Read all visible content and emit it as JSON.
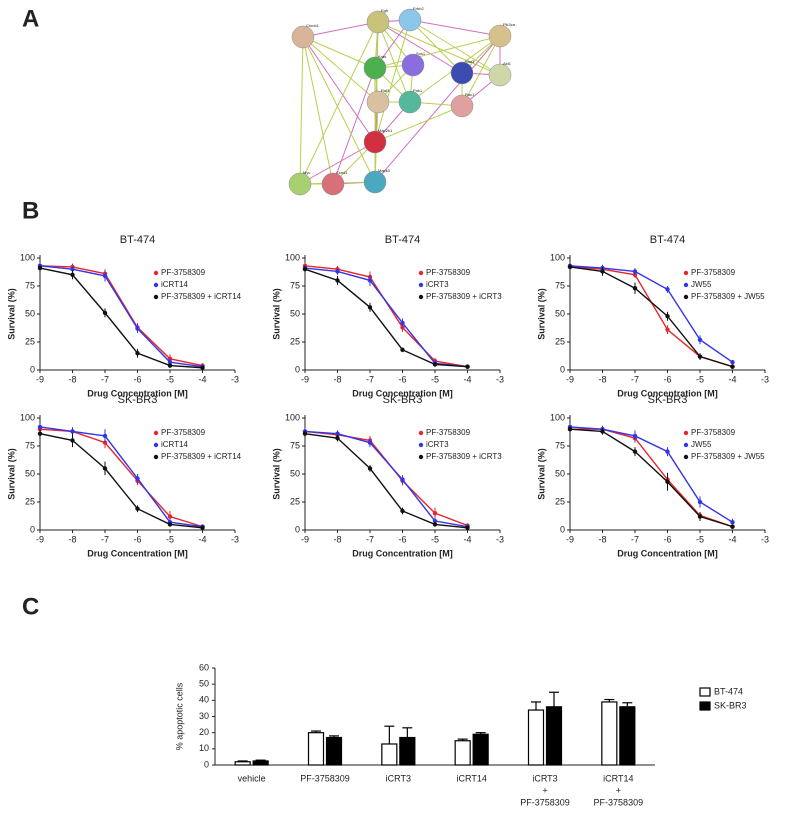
{
  "panels": [
    "A",
    "B",
    "C"
  ],
  "network": {
    "nodes": [
      {
        "label": "Ctnnb1",
        "color": "#d8b49a"
      },
      {
        "label": "Egfr",
        "color": "#c8c27a"
      },
      {
        "label": "Erbb2",
        "color": "#8cc6e8"
      },
      {
        "label": "Pik3ca",
        "color": "#d6c08c"
      },
      {
        "label": "Kras",
        "color": "#4caf50"
      },
      {
        "label": "Sos1",
        "color": "#8a6ee0"
      },
      {
        "label": "Stat3",
        "color": "#3c4cb0"
      },
      {
        "label": "Akt1",
        "color": "#cfd6a8"
      },
      {
        "label": "Raf1",
        "color": "#d8c0a0"
      },
      {
        "label": "Pak1",
        "color": "#56b89a"
      },
      {
        "label": "Rac1",
        "color": "#e0a0a0"
      },
      {
        "label": "Map2k1",
        "color": "#d03040"
      },
      {
        "label": "Myc",
        "color": "#a8d070"
      },
      {
        "label": "Ccnd1",
        "color": "#d8707a"
      },
      {
        "label": "Mapk3",
        "color": "#4aa8c0"
      }
    ]
  },
  "chart_data": [
    {
      "type": "line",
      "title": "BT-474",
      "xlabel": "Drug Concentration [M]",
      "ylabel": "Survival (%)",
      "x": [
        -9,
        -8,
        -7,
        -6,
        -5,
        -4
      ],
      "xlim": [
        -9,
        -3
      ],
      "xticks": [
        -9,
        -8,
        -7,
        -6,
        -5,
        -4,
        -3
      ],
      "ylim": [
        0,
        100
      ],
      "yticks": [
        0,
        25,
        50,
        75,
        100
      ],
      "series": [
        {
          "name": "PF-3758309",
          "color": "#e8262a",
          "values": [
            93,
            92,
            86,
            38,
            10,
            4
          ],
          "errors": [
            3,
            3,
            4,
            4,
            4,
            2
          ]
        },
        {
          "name": "iCRT14",
          "color": "#3434e8",
          "values": [
            93,
            90,
            84,
            37,
            7,
            3
          ],
          "errors": [
            3,
            3,
            5,
            4,
            3,
            2
          ]
        },
        {
          "name": "PF-3758309 + iCRT14",
          "color": "#111111",
          "values": [
            91,
            85,
            51,
            15,
            4,
            2
          ],
          "errors": [
            3,
            4,
            4,
            4,
            2,
            1
          ]
        }
      ]
    },
    {
      "type": "line",
      "title": "BT-474",
      "xlabel": "Drug Concentration [M]",
      "ylabel": "Survival (%)",
      "x": [
        -9,
        -8,
        -7,
        -6,
        -5,
        -4
      ],
      "xlim": [
        -9,
        -3
      ],
      "xticks": [
        -9,
        -8,
        -7,
        -6,
        -5,
        -4,
        -3
      ],
      "ylim": [
        0,
        100
      ],
      "yticks": [
        0,
        25,
        50,
        75,
        100
      ],
      "series": [
        {
          "name": "PF-3758309",
          "color": "#e8262a",
          "values": [
            93,
            90,
            83,
            38,
            8,
            3
          ],
          "errors": [
            3,
            3,
            5,
            4,
            3,
            2
          ]
        },
        {
          "name": "iCRT3",
          "color": "#3434e8",
          "values": [
            91,
            88,
            80,
            42,
            6,
            3
          ],
          "errors": [
            3,
            3,
            5,
            4,
            3,
            2
          ]
        },
        {
          "name": "PF-3758309 + iCRT3",
          "color": "#111111",
          "values": [
            90,
            80,
            56,
            18,
            5,
            3
          ],
          "errors": [
            3,
            4,
            4,
            2,
            2,
            1
          ]
        }
      ]
    },
    {
      "type": "line",
      "title": "BT-474",
      "xlabel": "Drug Concentration [M]",
      "ylabel": "Survival (%)",
      "x": [
        -9,
        -8,
        -7,
        -6,
        -5,
        -4
      ],
      "xlim": [
        -9,
        -3
      ],
      "xticks": [
        -9,
        -8,
        -7,
        -6,
        -5,
        -4,
        -3
      ],
      "ylim": [
        0,
        100
      ],
      "yticks": [
        0,
        25,
        50,
        75,
        100
      ],
      "series": [
        {
          "name": "PF-3758309",
          "color": "#e8262a",
          "values": [
            92,
            90,
            85,
            36,
            12,
            3
          ],
          "errors": [
            3,
            3,
            3,
            4,
            3,
            2
          ]
        },
        {
          "name": "JW55",
          "color": "#3434e8",
          "values": [
            93,
            91,
            88,
            72,
            27,
            7
          ],
          "errors": [
            3,
            3,
            3,
            3,
            4,
            2
          ]
        },
        {
          "name": "PF-3758309 + JW55",
          "color": "#111111",
          "values": [
            92,
            88,
            73,
            48,
            12,
            3
          ],
          "errors": [
            3,
            4,
            5,
            4,
            3,
            1
          ]
        }
      ]
    },
    {
      "type": "line",
      "title": "SK-BR3",
      "xlabel": "Drug Concentration [M]",
      "ylabel": "Survival (%)",
      "x": [
        -9,
        -8,
        -7,
        -6,
        -5,
        -4
      ],
      "xlim": [
        -9,
        -3
      ],
      "xticks": [
        -9,
        -8,
        -7,
        -6,
        -5,
        -4,
        -3
      ],
      "ylim": [
        0,
        100
      ],
      "yticks": [
        0,
        25,
        50,
        75,
        100
      ],
      "series": [
        {
          "name": "PF-3758309",
          "color": "#e8262a",
          "values": [
            90,
            88,
            78,
            44,
            12,
            3
          ],
          "errors": [
            3,
            4,
            5,
            4,
            5,
            2
          ]
        },
        {
          "name": "iCRT14",
          "color": "#3434e8",
          "values": [
            92,
            88,
            84,
            46,
            7,
            3
          ],
          "errors": [
            3,
            3,
            6,
            4,
            3,
            2
          ]
        },
        {
          "name": "PF-3758309 + iCRT14",
          "color": "#111111",
          "values": [
            86,
            80,
            55,
            19,
            5,
            2
          ],
          "errors": [
            4,
            6,
            6,
            3,
            2,
            1
          ]
        }
      ]
    },
    {
      "type": "line",
      "title": "SK-BR3",
      "xlabel": "Drug Concentration [M]",
      "ylabel": "Survival (%)",
      "x": [
        -9,
        -8,
        -7,
        -6,
        -5,
        -4
      ],
      "xlim": [
        -9,
        -3
      ],
      "xticks": [
        -9,
        -8,
        -7,
        -6,
        -5,
        -4,
        -3
      ],
      "ylim": [
        0,
        100
      ],
      "yticks": [
        0,
        25,
        50,
        75,
        100
      ],
      "series": [
        {
          "name": "PF-3758309",
          "color": "#e8262a",
          "values": [
            88,
            85,
            80,
            44,
            15,
            4
          ],
          "errors": [
            3,
            3,
            4,
            4,
            5,
            2
          ]
        },
        {
          "name": "iCRT3",
          "color": "#3434e8",
          "values": [
            88,
            86,
            78,
            45,
            8,
            3
          ],
          "errors": [
            3,
            3,
            4,
            4,
            3,
            2
          ]
        },
        {
          "name": "PF-3758309 + iCRT3",
          "color": "#111111",
          "values": [
            86,
            82,
            55,
            17,
            5,
            2
          ],
          "errors": [
            3,
            3,
            3,
            3,
            2,
            1
          ]
        }
      ]
    },
    {
      "type": "line",
      "title": "SK-BR3",
      "xlabel": "Drug Concentration [M]",
      "ylabel": "Survival (%)",
      "x": [
        -9,
        -8,
        -7,
        -6,
        -5,
        -4
      ],
      "xlim": [
        -9,
        -3
      ],
      "xticks": [
        -9,
        -8,
        -7,
        -6,
        -5,
        -4,
        -3
      ],
      "ylim": [
        0,
        100
      ],
      "yticks": [
        0,
        25,
        50,
        75,
        100
      ],
      "series": [
        {
          "name": "PF-3758309",
          "color": "#e8262a",
          "values": [
            90,
            90,
            82,
            45,
            13,
            3
          ],
          "errors": [
            3,
            3,
            4,
            6,
            3,
            2
          ]
        },
        {
          "name": "JW55",
          "color": "#3434e8",
          "values": [
            92,
            90,
            84,
            70,
            25,
            7
          ],
          "errors": [
            3,
            3,
            5,
            4,
            5,
            3
          ]
        },
        {
          "name": "PF-3758309 + JW55",
          "color": "#111111",
          "values": [
            90,
            88,
            70,
            43,
            12,
            3
          ],
          "errors": [
            3,
            3,
            4,
            8,
            4,
            1
          ]
        }
      ]
    },
    {
      "type": "bar",
      "ylabel": "% apoptotic cells",
      "legend": "right",
      "categories": [
        [
          "vehicle"
        ],
        [
          "PF-3758309"
        ],
        [
          "iCRT3"
        ],
        [
          "iCRT14"
        ],
        [
          "iCRT3",
          "+",
          "PF-3758309"
        ],
        [
          "iCRT14",
          "+",
          "PF-3758309"
        ]
      ],
      "ylim": [
        0,
        60
      ],
      "yticks": [
        0,
        10,
        20,
        30,
        40,
        50,
        60
      ],
      "series": [
        {
          "name": "BT-474",
          "color": "#ffffff",
          "values": [
            2,
            20,
            13,
            15,
            34,
            39
          ],
          "errors": [
            0.5,
            1,
            11,
            1,
            5,
            1.5
          ]
        },
        {
          "name": "SK-BR3",
          "color": "#000000",
          "values": [
            2.5,
            17,
            17,
            19,
            36,
            36
          ],
          "errors": [
            0.5,
            1,
            6,
            1,
            9,
            2.5
          ]
        }
      ]
    }
  ]
}
